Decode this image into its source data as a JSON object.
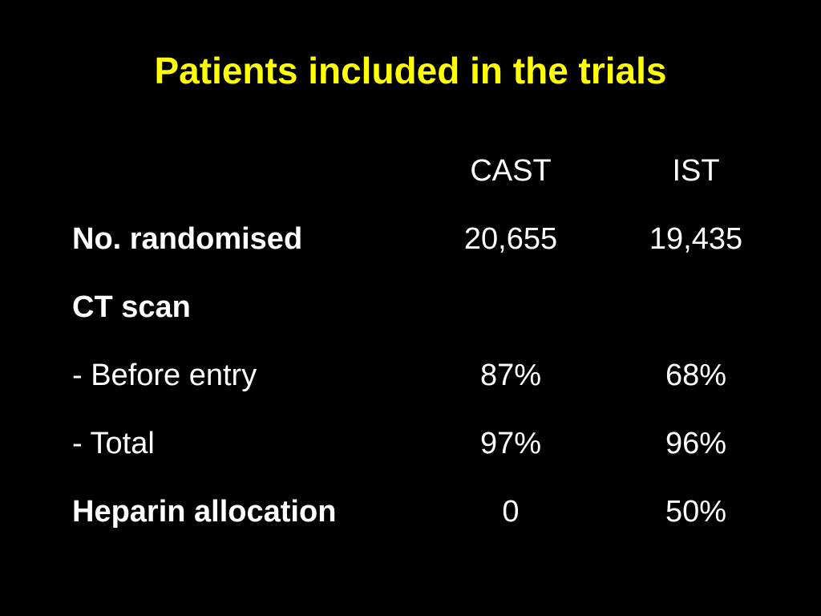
{
  "header": {
    "title": "Patients included in the trials"
  },
  "table": {
    "columns": [
      "CAST",
      "IST"
    ],
    "rows": [
      {
        "label": "No. randomised",
        "bold": true,
        "cells": [
          "20,655",
          "19,435"
        ]
      },
      {
        "label": "CT scan",
        "bold": true,
        "cells": []
      },
      {
        "label": "- Before entry",
        "bold": false,
        "cells": [
          "87%",
          "68%"
        ]
      },
      {
        "label": "- Total",
        "bold": false,
        "cells": [
          "97%",
          "96%"
        ]
      },
      {
        "label": "Heparin allocation",
        "bold": true,
        "cells": [
          "0",
          "50%"
        ]
      }
    ]
  }
}
